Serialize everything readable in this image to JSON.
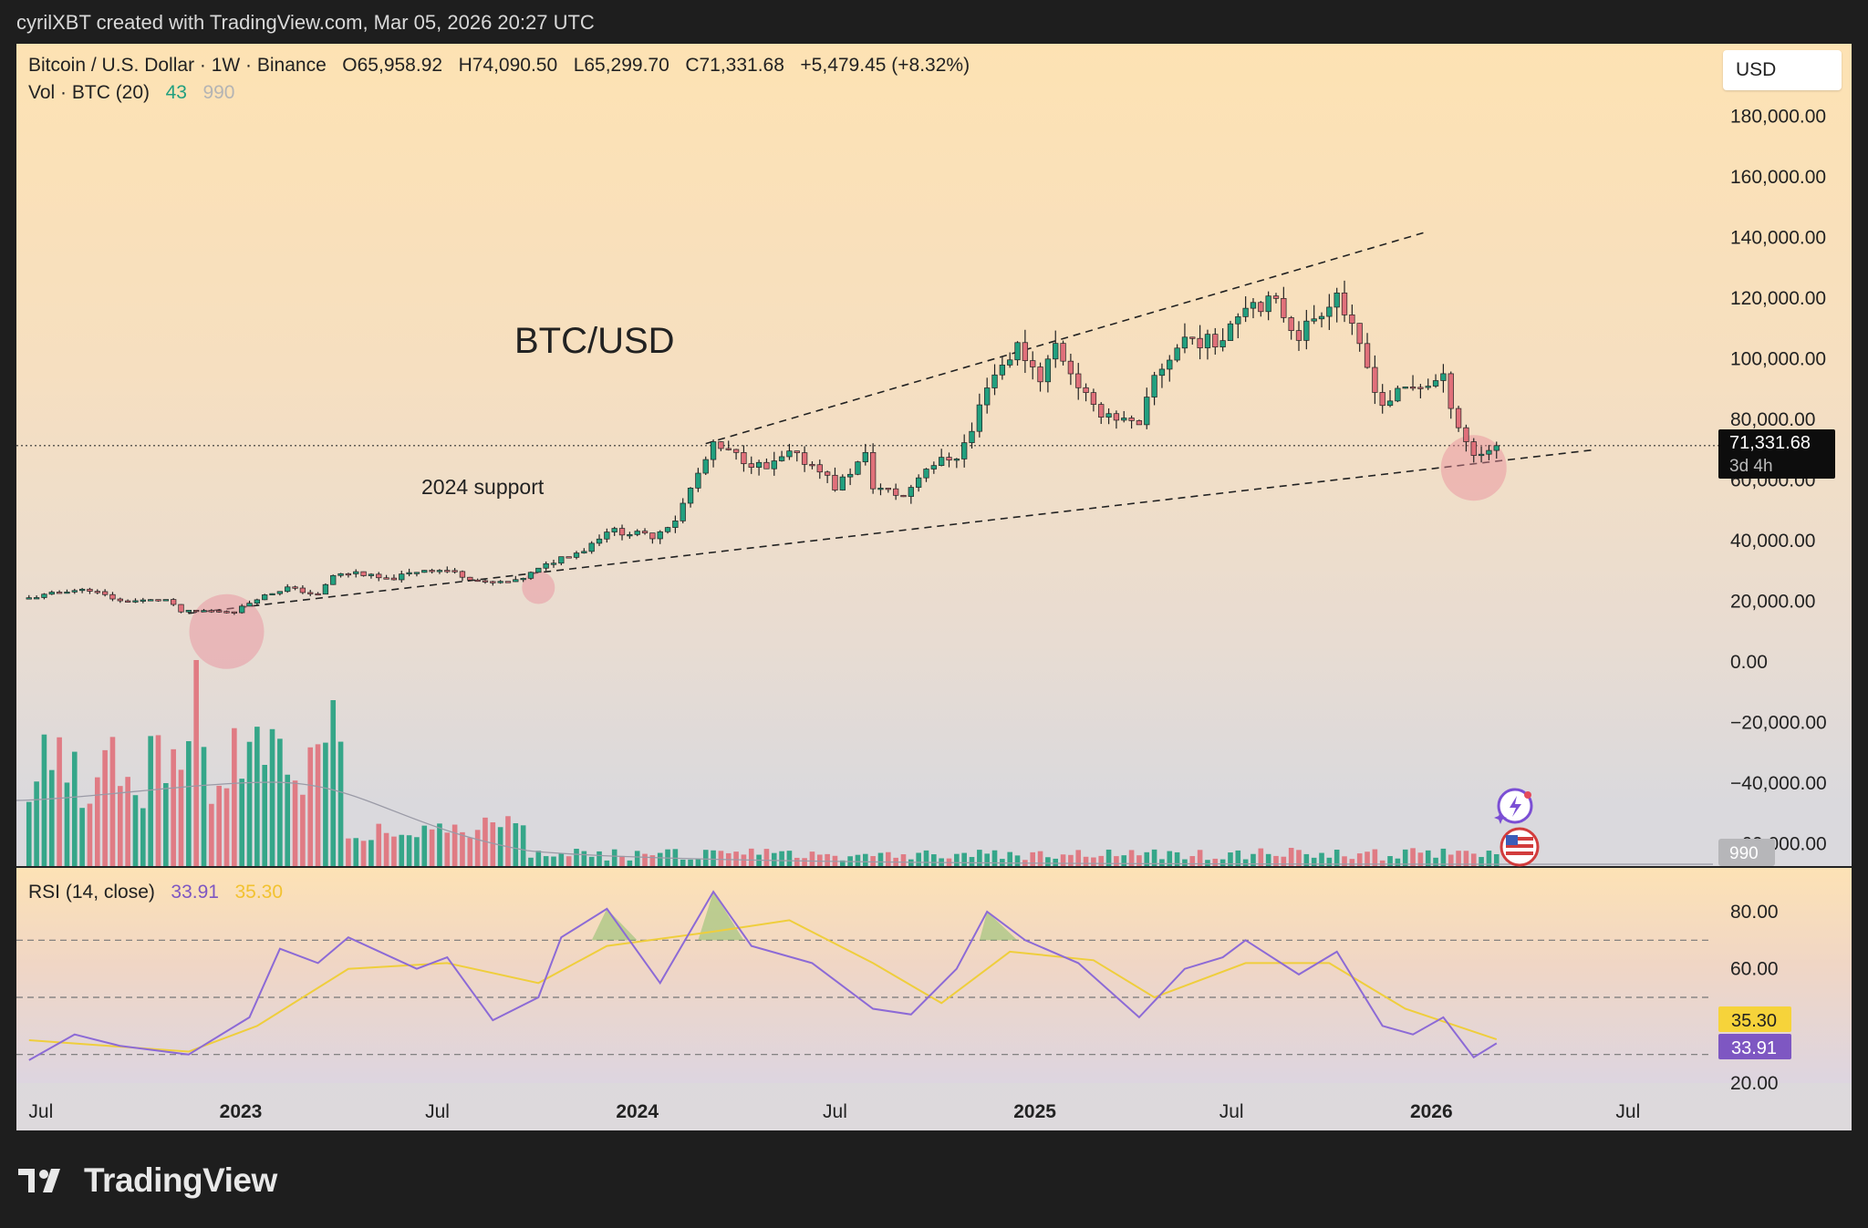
{
  "header": {
    "caption": "cyrilXBT created with TradingView.com, Mar 05, 2026 20:27 UTC"
  },
  "legend": {
    "symbol": "Bitcoin / U.S. Dollar · 1W · Binance",
    "open": "O65,958.92",
    "high": "H74,090.50",
    "low": "L65,299.70",
    "close": "C71,331.68",
    "change": "+5,479.45 (+8.32%)",
    "vol_label": "Vol · BTC (20)",
    "vol_value": "43",
    "vol_ma": "990"
  },
  "currency": "USD",
  "annotations": {
    "title": "BTC/USD",
    "support": "2024 support"
  },
  "price_tag": {
    "value": "71,331.68",
    "countdown": "3d 4h"
  },
  "volume_tag": "990",
  "rsi_legend": {
    "label": "RSI (14, close)",
    "value": "33.91",
    "ma": "35.30"
  },
  "rsi_tags": {
    "rsi": "33.91",
    "ma": "35.30"
  },
  "footer": {
    "brand": "TradingView"
  },
  "colors": {
    "up": "#22a07f",
    "down": "#e0707a",
    "rsi": "#8c6ad6",
    "rsi_ma": "#efce3c",
    "rsi_ma_tag": "#f6d33a",
    "rsi_tag": "#7e57c2"
  },
  "chart_data": [
    {
      "type": "candlestick",
      "title": "BTC/USD",
      "ylim": [
        -60000,
        190000
      ],
      "y_ticks": [
        "180,000.00",
        "160,000.00",
        "140,000.00",
        "120,000.00",
        "100,000.00",
        "80,000.00",
        "60,000.00",
        "40,000.00",
        "20,000.00",
        "0.00",
        "−20,000.00",
        "−40,000.00",
        "−60,000.00"
      ],
      "x_ticks": [
        {
          "label": "Jul",
          "date": "2022-07-01",
          "bold": false
        },
        {
          "label": "2023",
          "date": "2023-01-01",
          "bold": true
        },
        {
          "label": "Jul",
          "date": "2023-07-01",
          "bold": false
        },
        {
          "label": "2024",
          "date": "2024-01-01",
          "bold": true
        },
        {
          "label": "Jul",
          "date": "2024-07-01",
          "bold": false
        },
        {
          "label": "2025",
          "date": "2025-01-01",
          "bold": true
        },
        {
          "label": "Jul",
          "date": "2025-07-01",
          "bold": false
        },
        {
          "label": "2026",
          "date": "2026-01-01",
          "bold": true
        },
        {
          "label": "Jul",
          "date": "2026-07-01",
          "bold": false
        }
      ],
      "close_path": [
        [
          "2022-06-20",
          21000
        ],
        [
          "2022-07-25",
          23500
        ],
        [
          "2022-08-15",
          23800
        ],
        [
          "2022-09-12",
          20000
        ],
        [
          "2022-10-24",
          20500
        ],
        [
          "2022-11-07",
          16500
        ],
        [
          "2022-11-28",
          16900
        ],
        [
          "2022-12-26",
          16600
        ],
        [
          "2023-01-16",
          21000
        ],
        [
          "2023-02-13",
          24500
        ],
        [
          "2023-03-13",
          22000
        ],
        [
          "2023-03-27",
          28500
        ],
        [
          "2023-04-17",
          29500
        ],
        [
          "2023-05-15",
          27000
        ],
        [
          "2023-06-19",
          30500
        ],
        [
          "2023-07-10",
          30200
        ],
        [
          "2023-08-14",
          26000
        ],
        [
          "2023-09-11",
          26500
        ],
        [
          "2023-10-23",
          34500
        ],
        [
          "2023-11-13",
          37000
        ],
        [
          "2023-12-04",
          43500
        ],
        [
          "2024-01-15",
          41500
        ],
        [
          "2024-02-05",
          47000
        ],
        [
          "2024-02-26",
          62000
        ],
        [
          "2024-03-11",
          71000
        ],
        [
          "2024-04-01",
          68000
        ],
        [
          "2024-04-29",
          63500
        ],
        [
          "2024-05-20",
          68500
        ],
        [
          "2024-06-17",
          64000
        ],
        [
          "2024-07-01",
          57500
        ],
        [
          "2024-07-29",
          68000
        ],
        [
          "2024-08-05",
          58000
        ],
        [
          "2024-09-02",
          54500
        ],
        [
          "2024-09-23",
          64500
        ],
        [
          "2024-10-21",
          68000
        ],
        [
          "2024-11-04",
          76000
        ],
        [
          "2024-11-18",
          92000
        ],
        [
          "2024-12-16",
          104000
        ],
        [
          "2025-01-06",
          94000
        ],
        [
          "2025-01-20",
          104500
        ],
        [
          "2025-02-24",
          83000
        ],
        [
          "2025-03-10",
          82000
        ],
        [
          "2025-04-07",
          77000
        ],
        [
          "2025-04-21",
          94000
        ],
        [
          "2025-05-19",
          107000
        ],
        [
          "2025-06-16",
          105000
        ],
        [
          "2025-07-14",
          119000
        ],
        [
          "2025-08-11",
          118000
        ],
        [
          "2025-09-01",
          108000
        ],
        [
          "2025-10-06",
          122000
        ],
        [
          "2025-10-20",
          109000
        ],
        [
          "2025-11-17",
          85000
        ],
        [
          "2025-12-08",
          90000
        ],
        [
          "2026-01-12",
          93000
        ],
        [
          "2026-01-26",
          78000
        ],
        [
          "2026-02-09",
          68000
        ],
        [
          "2026-03-02",
          71331.68
        ]
      ],
      "last_close": 71331.68,
      "support_line": [
        [
          "2022-11-14",
          16000
        ],
        [
          "2026-06-01",
          70000
        ]
      ],
      "upper_line": [
        [
          "2024-03-04",
          72000
        ],
        [
          "2025-12-29",
          142000
        ]
      ]
    },
    {
      "type": "bar",
      "title": "Vol · BTC (20)",
      "note": "weekly volume with 20-period MA; last MA value 990",
      "ma_value": 990
    },
    {
      "type": "line",
      "title": "RSI (14, close)",
      "ylim": [
        20,
        80
      ],
      "y_ticks": [
        "80.00",
        "60.00",
        "20.00"
      ],
      "levels": [
        70,
        50,
        30
      ],
      "series": [
        {
          "name": "RSI",
          "points": [
            [
              "2022-06-20",
              28
            ],
            [
              "2022-08-01",
              37
            ],
            [
              "2022-09-12",
              33
            ],
            [
              "2022-11-14",
              30
            ],
            [
              "2023-01-09",
              43
            ],
            [
              "2023-02-06",
              67
            ],
            [
              "2023-03-13",
              62
            ],
            [
              "2023-04-10",
              71
            ],
            [
              "2023-06-12",
              60
            ],
            [
              "2023-07-10",
              64
            ],
            [
              "2023-08-21",
              42
            ],
            [
              "2023-10-02",
              50
            ],
            [
              "2023-10-23",
              71
            ],
            [
              "2023-12-04",
              81
            ],
            [
              "2024-01-22",
              55
            ],
            [
              "2024-03-11",
              87
            ],
            [
              "2024-04-15",
              68
            ],
            [
              "2024-06-10",
              62
            ],
            [
              "2024-08-05",
              46
            ],
            [
              "2024-09-09",
              44
            ],
            [
              "2024-10-21",
              60
            ],
            [
              "2024-11-18",
              80
            ],
            [
              "2024-12-23",
              70
            ],
            [
              "2025-02-10",
              62
            ],
            [
              "2025-04-07",
              43
            ],
            [
              "2025-05-19",
              60
            ],
            [
              "2025-06-23",
              64
            ],
            [
              "2025-07-14",
              70
            ],
            [
              "2025-09-01",
              58
            ],
            [
              "2025-10-06",
              66
            ],
            [
              "2025-11-17",
              40
            ],
            [
              "2025-12-15",
              37
            ],
            [
              "2026-01-12",
              43
            ],
            [
              "2026-02-09",
              29
            ],
            [
              "2026-03-02",
              33.91
            ]
          ]
        },
        {
          "name": "RSI MA",
          "points": [
            [
              "2022-06-20",
              35
            ],
            [
              "2022-11-14",
              31
            ],
            [
              "2023-01-16",
              40
            ],
            [
              "2023-04-10",
              60
            ],
            [
              "2023-07-10",
              62
            ],
            [
              "2023-10-02",
              55
            ],
            [
              "2023-12-04",
              68
            ],
            [
              "2024-03-11",
              73
            ],
            [
              "2024-05-20",
              77
            ],
            [
              "2024-08-05",
              62
            ],
            [
              "2024-10-07",
              48
            ],
            [
              "2024-12-09",
              66
            ],
            [
              "2025-02-24",
              63
            ],
            [
              "2025-04-21",
              50
            ],
            [
              "2025-07-14",
              62
            ],
            [
              "2025-09-29",
              62
            ],
            [
              "2025-12-08",
              46
            ],
            [
              "2026-03-02",
              35.3
            ]
          ]
        }
      ]
    }
  ]
}
